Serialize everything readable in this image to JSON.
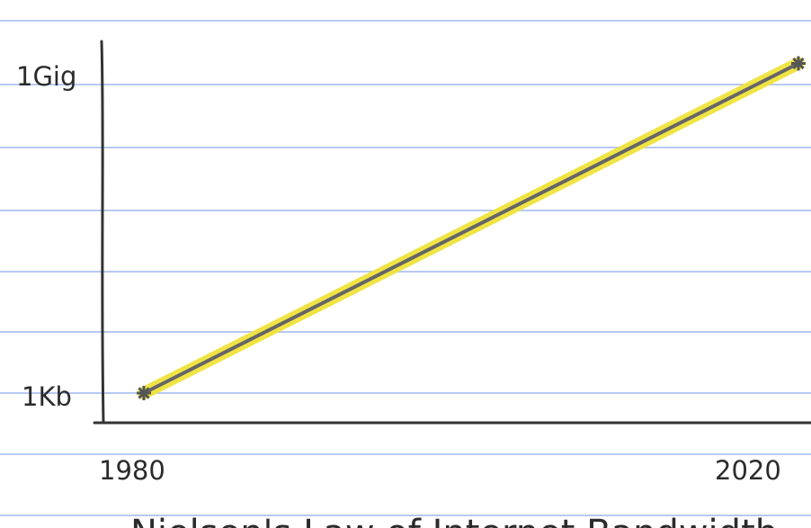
{
  "chart_data": {
    "type": "line",
    "title": "Nielsen's Law of Internet Bandwidth",
    "xlabel": "",
    "ylabel": "",
    "x_ticks": [
      "1980",
      "2020"
    ],
    "y_ticks": [
      "1Kb",
      "1Gig"
    ],
    "y_scale": "log",
    "x": [
      1980,
      2020
    ],
    "series": [
      {
        "values": [
          "1Kb",
          "2Gig"
        ]
      }
    ],
    "grid": true,
    "colors": {
      "paper_lines": "#b7c9f2",
      "line": "#666666",
      "highlight": "#f0e33a",
      "axis": "#333333"
    }
  }
}
